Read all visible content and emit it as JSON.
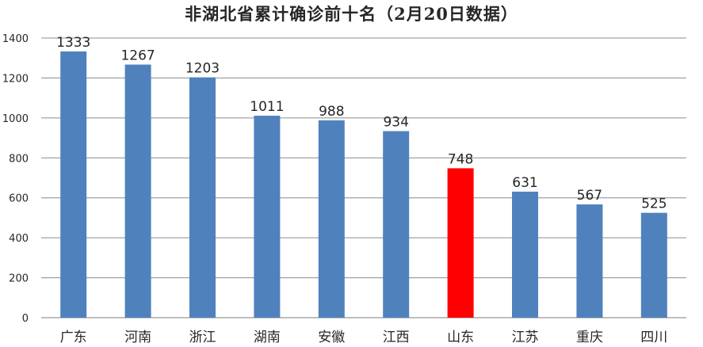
{
  "chart_data": {
    "type": "bar",
    "title": "非湖北省累计确诊前十名（2月20日数据）",
    "categories": [
      "广东",
      "河南",
      "浙江",
      "湖南",
      "安徽",
      "江西",
      "山东",
      "江苏",
      "重庆",
      "四川"
    ],
    "values": [
      1333,
      1267,
      1203,
      1011,
      988,
      934,
      748,
      631,
      567,
      525
    ],
    "data_labels": [
      "1333",
      "1267",
      "1203",
      "1011",
      "988",
      "934",
      "748",
      "631",
      "567",
      "525"
    ],
    "ylim": [
      0,
      1400
    ],
    "yticks": [
      0,
      200,
      400,
      600,
      800,
      1000,
      1200,
      1400
    ],
    "ytick_labels": [
      "0",
      "200",
      "400",
      "600",
      "800",
      "1000",
      "1200",
      "1400"
    ],
    "xlabel": "",
    "ylabel": "",
    "grid": true,
    "legend": "none",
    "bar_color": "#4f81bd",
    "highlight_color": "#ff0000",
    "highlight_category": "山东"
  }
}
